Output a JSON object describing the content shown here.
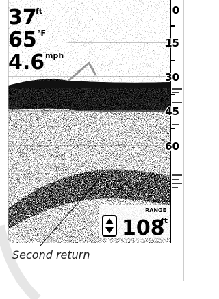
{
  "readouts": [
    {
      "value": "37",
      "unit": "ft"
    },
    {
      "value": "65",
      "unit": "°F"
    },
    {
      "value": "4.6",
      "unit": "mph"
    }
  ],
  "depth_scale": [
    "0",
    "15",
    "30",
    "45",
    "60"
  ],
  "range": {
    "label": "RANGE",
    "value": "108",
    "unit": "ft"
  },
  "annotation": "Second return"
}
